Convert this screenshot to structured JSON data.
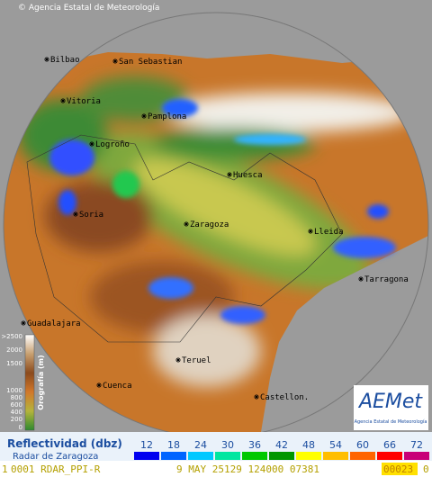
{
  "header": {
    "copyright": "© Agencia Estatal de Meteorología"
  },
  "cities": [
    "Bilbao",
    "San Sebastian",
    "Vitoria",
    "Pamplona",
    "Logroño",
    "Huesca",
    "Soria",
    "Zaragoza",
    "Lleida",
    "Tarragona",
    "Guadalajara",
    "Teruel",
    "Cuenca",
    "Castellon."
  ],
  "orography": {
    "title": "Orografía",
    "unit": "(m)",
    "ticks": [
      ">2500",
      "2000",
      "1500",
      "1000",
      "800",
      "600",
      "400",
      "200",
      "0"
    ]
  },
  "logo": {
    "name": "AEMet",
    "subtitle": "Agencia Estatal de Meteorología"
  },
  "legend": {
    "title": "Reflectividad (dbz)",
    "subtitle": "Radar de Zaragoza",
    "levels": [
      12,
      18,
      24,
      30,
      36,
      42,
      48,
      54,
      60,
      66,
      72
    ],
    "colors": [
      "#0000f0",
      "#0064ff",
      "#00c8ff",
      "#00e6a0",
      "#00c800",
      "#009600",
      "#ffff00",
      "#ffbe00",
      "#ff6400",
      "#ff0000",
      "#c80078"
    ]
  },
  "status": [
    "1",
    "0001 RDAR_PPI-R",
    "9 MAY 25129 124000 07381",
    "00023",
    "0"
  ]
}
